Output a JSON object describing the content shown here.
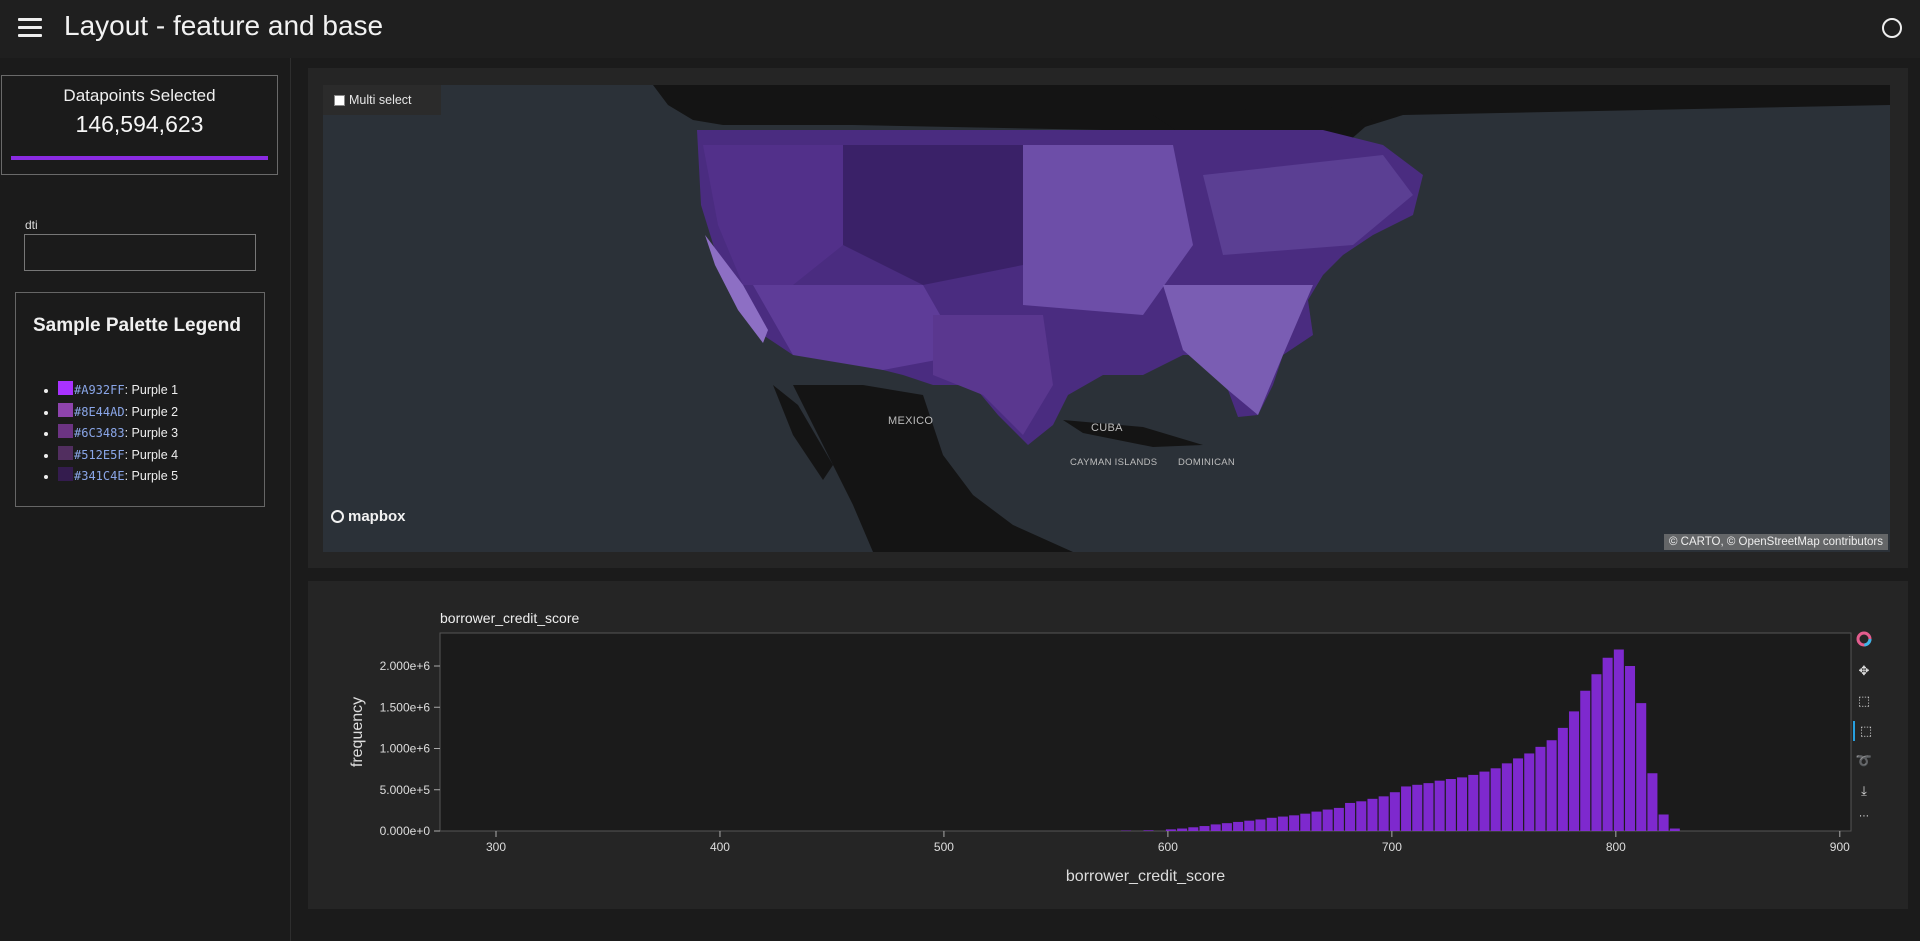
{
  "header": {
    "title": "Layout - feature and base",
    "menu_icon": "hamburger-menu-icon",
    "busy_icon": "busy-indicator-icon"
  },
  "sidebar": {
    "datapoints": {
      "title": "Datapoints Selected",
      "value": "146,594,623",
      "progress": 1.0
    },
    "dti": {
      "label": "dti",
      "value": ""
    },
    "legend": {
      "title": "Sample Palette Legend",
      "items": [
        {
          "hex": "#A932FF",
          "label": ": Purple 1"
        },
        {
          "hex": "#8E44AD",
          "label": ": Purple 2"
        },
        {
          "hex": "#6C3483",
          "label": ": Purple 3"
        },
        {
          "hex": "#512E5F",
          "label": ": Purple 4"
        },
        {
          "hex": "#341C4E",
          "label": ": Purple 5"
        }
      ]
    }
  },
  "map": {
    "multi_select_label": "Multi select",
    "labels": {
      "mexico": "MEXICO",
      "cuba": "CUBA",
      "cayman": "CAYMAN ISLANDS",
      "dominican": "DOMINICAN"
    },
    "logo": "mapbox",
    "attribution": "© CARTO, © OpenStreetMap contributors"
  },
  "histogram": {
    "toolbar": [
      "bokeh-logo-icon",
      "pan-icon",
      "box-zoom-icon",
      "box-select-icon",
      "lasso-select-icon",
      "save-icon",
      "more-icon"
    ]
  },
  "chart_data": {
    "type": "bar",
    "title": "borrower_credit_score",
    "xlabel": "borrower_credit_score",
    "ylabel": "frequency",
    "xlim": [
      275,
      905
    ],
    "ylim": [
      0,
      2400000
    ],
    "xticks": [
      300,
      400,
      500,
      600,
      700,
      800,
      900
    ],
    "xtick_labels": [
      "300",
      "400",
      "500",
      "600",
      "700",
      "800",
      "900"
    ],
    "yticks": [
      0,
      500000,
      1000000,
      1500000,
      2000000
    ],
    "ytick_labels": [
      "0.000e+0",
      "5.000e+5",
      "1.000e+6",
      "1.500e+6",
      "2.000e+6"
    ],
    "bar_color": "#8a2be2",
    "x": [
      580,
      590,
      600,
      605,
      610,
      615,
      620,
      625,
      630,
      635,
      640,
      645,
      650,
      655,
      660,
      665,
      670,
      675,
      680,
      685,
      690,
      695,
      700,
      705,
      710,
      715,
      720,
      725,
      730,
      735,
      740,
      745,
      750,
      755,
      760,
      765,
      770,
      775,
      780,
      785,
      790,
      795,
      800,
      805,
      810,
      815,
      820,
      825
    ],
    "values": [
      5000,
      8000,
      20000,
      30000,
      45000,
      60000,
      80000,
      95000,
      110000,
      125000,
      140000,
      160000,
      175000,
      190000,
      210000,
      235000,
      260000,
      280000,
      340000,
      360000,
      390000,
      420000,
      470000,
      540000,
      560000,
      580000,
      610000,
      630000,
      650000,
      680000,
      720000,
      760000,
      820000,
      880000,
      940000,
      1020000,
      1100000,
      1250000,
      1450000,
      1700000,
      1900000,
      2100000,
      2200000,
      2000000,
      1550000,
      700000,
      200000,
      30000
    ]
  }
}
